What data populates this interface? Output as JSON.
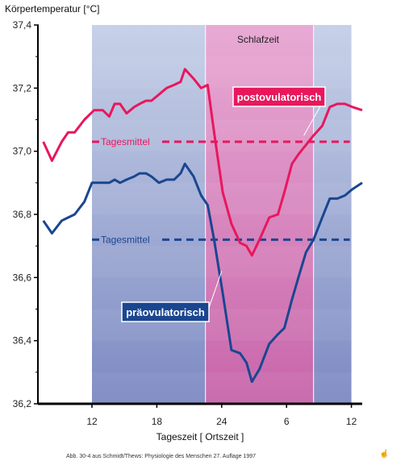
{
  "chart_data": {
    "type": "line",
    "ylabel": "Körpertemperatur [°C]",
    "xlabel": "Tageszeit [ Ortszeit ]",
    "ylim": [
      36.2,
      37.4
    ],
    "y_ticks": [
      "36,2",
      "36,4",
      "36,6",
      "36,8",
      "37,0",
      "37,2",
      "37,4"
    ],
    "y_tick_values": [
      36.2,
      36.4,
      36.6,
      36.8,
      37.0,
      37.2,
      37.4
    ],
    "x_range_hours": [
      7,
      37
    ],
    "x_ticks": [
      {
        "label": "12",
        "hour": 12
      },
      {
        "label": "18",
        "hour": 18
      },
      {
        "label": "24",
        "hour": 24
      },
      {
        "label": "6",
        "hour": 30
      },
      {
        "label": "12",
        "hour": 36
      }
    ],
    "recorded_period_hours": [
      12,
      36
    ],
    "sleep_period": {
      "label": "Schlafzeit",
      "start_hour": 22.5,
      "end_hour": 32.5
    },
    "series": [
      {
        "name": "postovulatorisch",
        "color": "#e8175d",
        "mean_label": "Tagesmittel",
        "mean": 37.03,
        "x": [
          7.5,
          8.3,
          9.2,
          9.8,
          10.4,
          11.3,
          12.2,
          13.0,
          13.6,
          14.1,
          14.6,
          15.2,
          15.9,
          16.4,
          17.0,
          17.5,
          18.2,
          18.9,
          19.6,
          20.2,
          20.6,
          21.4,
          22.1,
          22.7,
          23.3,
          24.1,
          24.9,
          25.7,
          26.3,
          26.8,
          27.5,
          28.4,
          29.2,
          29.8,
          30.5,
          31.1,
          31.8,
          32.5,
          33.3,
          34.0,
          34.7,
          35.4,
          36.1,
          37.0
        ],
        "y": [
          37.03,
          36.97,
          37.03,
          37.06,
          37.06,
          37.1,
          37.13,
          37.13,
          37.11,
          37.15,
          37.15,
          37.12,
          37.14,
          37.15,
          37.16,
          37.16,
          37.18,
          37.2,
          37.21,
          37.22,
          37.26,
          37.23,
          37.2,
          37.21,
          37.06,
          36.87,
          36.77,
          36.71,
          36.7,
          36.67,
          36.72,
          36.79,
          36.8,
          36.87,
          36.96,
          36.99,
          37.02,
          37.05,
          37.08,
          37.14,
          37.15,
          37.15,
          37.14,
          37.13
        ]
      },
      {
        "name": "präovulatorisch",
        "color": "#1a4690",
        "mean_label": "Tagesmittel",
        "mean": 36.72,
        "x": [
          7.5,
          8.3,
          9.2,
          9.8,
          10.4,
          11.3,
          12.0,
          12.8,
          13.6,
          14.1,
          14.6,
          15.2,
          15.9,
          16.4,
          17.0,
          17.5,
          18.2,
          18.9,
          19.6,
          20.2,
          20.6,
          21.4,
          22.1,
          22.7,
          23.3,
          24.1,
          24.9,
          25.7,
          26.3,
          26.8,
          27.5,
          28.4,
          29.2,
          29.8,
          30.5,
          31.1,
          31.8,
          32.5,
          33.3,
          34.0,
          34.7,
          35.4,
          36.1,
          37.0
        ],
        "y": [
          36.78,
          36.74,
          36.78,
          36.79,
          36.8,
          36.84,
          36.9,
          36.9,
          36.9,
          36.91,
          36.9,
          36.91,
          36.92,
          36.93,
          36.93,
          36.92,
          36.9,
          36.91,
          36.91,
          36.93,
          36.96,
          36.92,
          36.86,
          36.83,
          36.72,
          36.55,
          36.37,
          36.36,
          36.33,
          36.27,
          36.31,
          36.39,
          36.42,
          36.44,
          36.53,
          36.6,
          36.68,
          36.72,
          36.79,
          36.85,
          36.85,
          36.86,
          36.88,
          36.9
        ]
      }
    ]
  },
  "caption": "Abb. 30-4 aus Schmidt/Thews: Physiologie des Menschen 27. Auflage 1997",
  "corner_icon": "hand-pointer-icon"
}
